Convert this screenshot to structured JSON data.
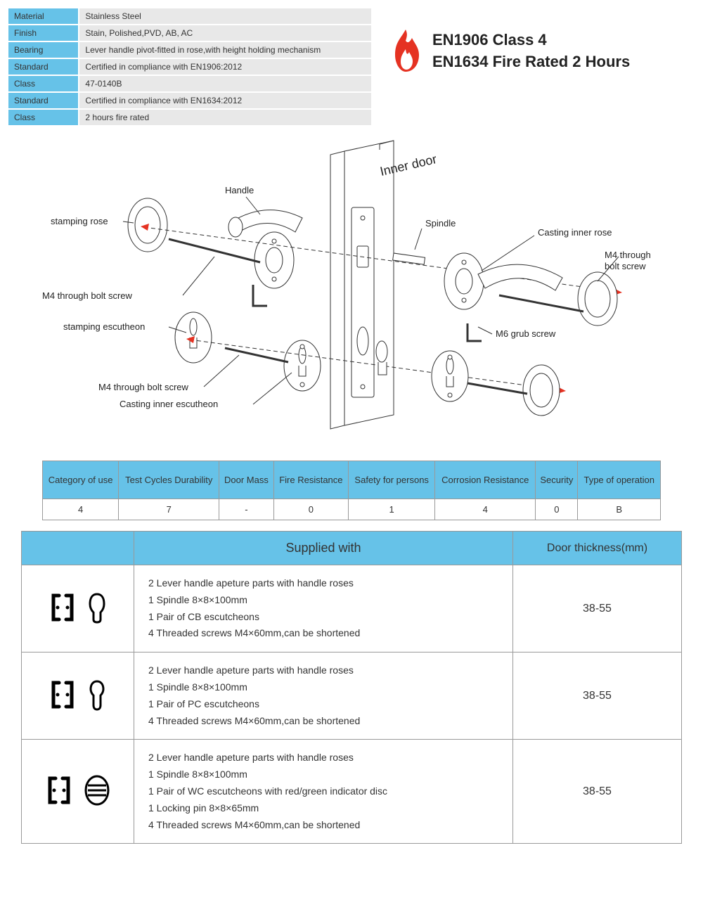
{
  "colors": {
    "accent": "#66c2e8",
    "row_bg": "#e8e8e8",
    "border": "#999999",
    "flame_red": "#e53222",
    "flame_inner": "#ffffff",
    "text": "#333333"
  },
  "spec_rows": [
    {
      "label": "Material",
      "value": "Stainless Steel"
    },
    {
      "label": "Finish",
      "value": "Stain, Polished,PVD, AB, AC"
    },
    {
      "label": "Bearing",
      "value": "Lever handle pivot-fitted in rose,with height holding mechanism"
    },
    {
      "label": "Standard",
      "value": "Certified in compliance with EN1906:2012"
    },
    {
      "label": "Class",
      "value": "47-0140B"
    },
    {
      "label": "Standard",
      "value": "Certified in compliance with EN1634:2012"
    },
    {
      "label": "Class",
      "value": "2 hours fire rated"
    }
  ],
  "cert": {
    "line1": "EN1906 Class 4",
    "line2": "EN1634 Fire Rated 2 Hours"
  },
  "diagram_labels": {
    "handle": "Handle",
    "inner_door": "Inner door",
    "stamping_rose": "stamping rose",
    "spindle": "Spindle",
    "casting_inner_rose": "Casting inner rose",
    "m4_top1": "M4 through bolt screw",
    "m4_top2": "M4 through\nbolt screw",
    "stamping_escutheon": "stamping escutheon",
    "m6_grub": "M6 grub screw",
    "m4_bottom": "M4 through bolt screw",
    "casting_inner_escutheon": "Casting inner escutheon"
  },
  "rating": {
    "headers": [
      "Category of use",
      "Test Cycles Durability",
      "Door Mass",
      "Fire Resistance",
      "Safety for persons",
      "Corrosion Resistance",
      "Security",
      "Type of operation"
    ],
    "values": [
      "4",
      "7",
      "-",
      "0",
      "1",
      "4",
      "0",
      "B"
    ]
  },
  "supply": {
    "headers": {
      "blank": "",
      "supplied": "Supplied with",
      "thickness": "Door thickness(mm)"
    },
    "rows": [
      {
        "icon_type": "cb",
        "lines": [
          "2 Lever handle apeture parts with handle roses",
          "1 Spindle 8×8×100mm",
          "1 Pair of CB escutcheons",
          "4 Threaded screws M4×60mm,can be shortened"
        ],
        "thickness": "38-55"
      },
      {
        "icon_type": "pc",
        "lines": [
          "2 Lever handle apeture parts with handle roses",
          "1 Spindle 8×8×100mm",
          "1 Pair of PC escutcheons",
          "4 Threaded screws M4×60mm,can be shortened"
        ],
        "thickness": "38-55"
      },
      {
        "icon_type": "wc",
        "lines": [
          "2 Lever handle apeture parts with handle roses",
          "1 Spindle 8×8×100mm",
          "1 Pair of WC escutcheons with red/green indicator disc",
          "1 Locking pin 8×8×65mm",
          "4 Threaded screws M4×60mm,can be shortened"
        ],
        "thickness": "38-55"
      }
    ]
  }
}
